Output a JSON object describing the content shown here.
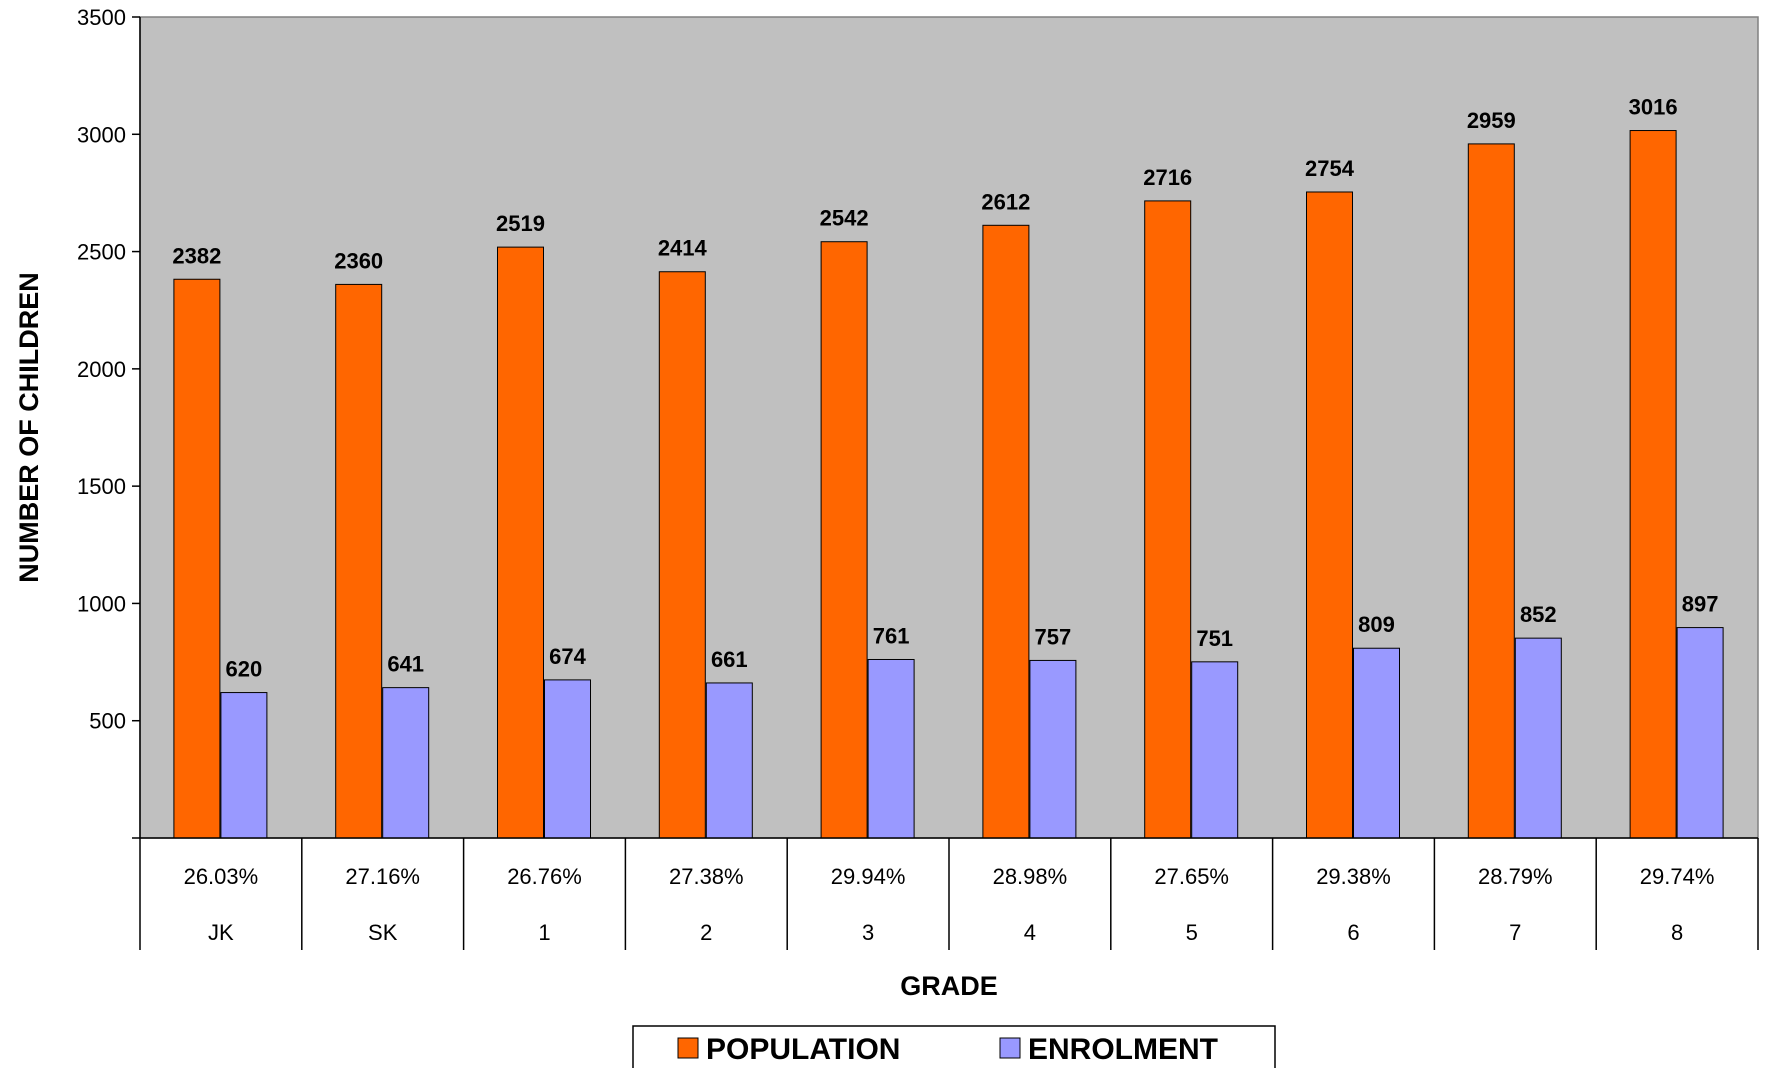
{
  "chart_data": {
    "type": "bar",
    "categories": [
      "JK",
      "SK",
      "1",
      "2",
      "3",
      "4",
      "5",
      "6",
      "7",
      "8"
    ],
    "row_labels": [
      "26.03%",
      "27.16%",
      "26.76%",
      "27.38%",
      "29.94%",
      "28.98%",
      "27.65%",
      "29.38%",
      "28.79%",
      "29.74%"
    ],
    "series": [
      {
        "name": "POPULATION",
        "color": "#ff6600",
        "values": [
          2382,
          2360,
          2519,
          2414,
          2542,
          2612,
          2716,
          2754,
          2959,
          3016
        ]
      },
      {
        "name": "ENROLMENT",
        "color": "#9999ff",
        "values": [
          620,
          641,
          674,
          661,
          761,
          757,
          751,
          809,
          852,
          897
        ]
      }
    ],
    "title": "",
    "xlabel": "GRADE",
    "ylabel": "NUMBER OF CHILDREN",
    "ylim": [
      0,
      3500
    ],
    "yticks": [
      500,
      1000,
      1500,
      2000,
      2500,
      3000,
      3500
    ],
    "plot_background": "#c0c0c0",
    "gridlines": false,
    "legend_position": "bottom",
    "data_labels": true
  }
}
